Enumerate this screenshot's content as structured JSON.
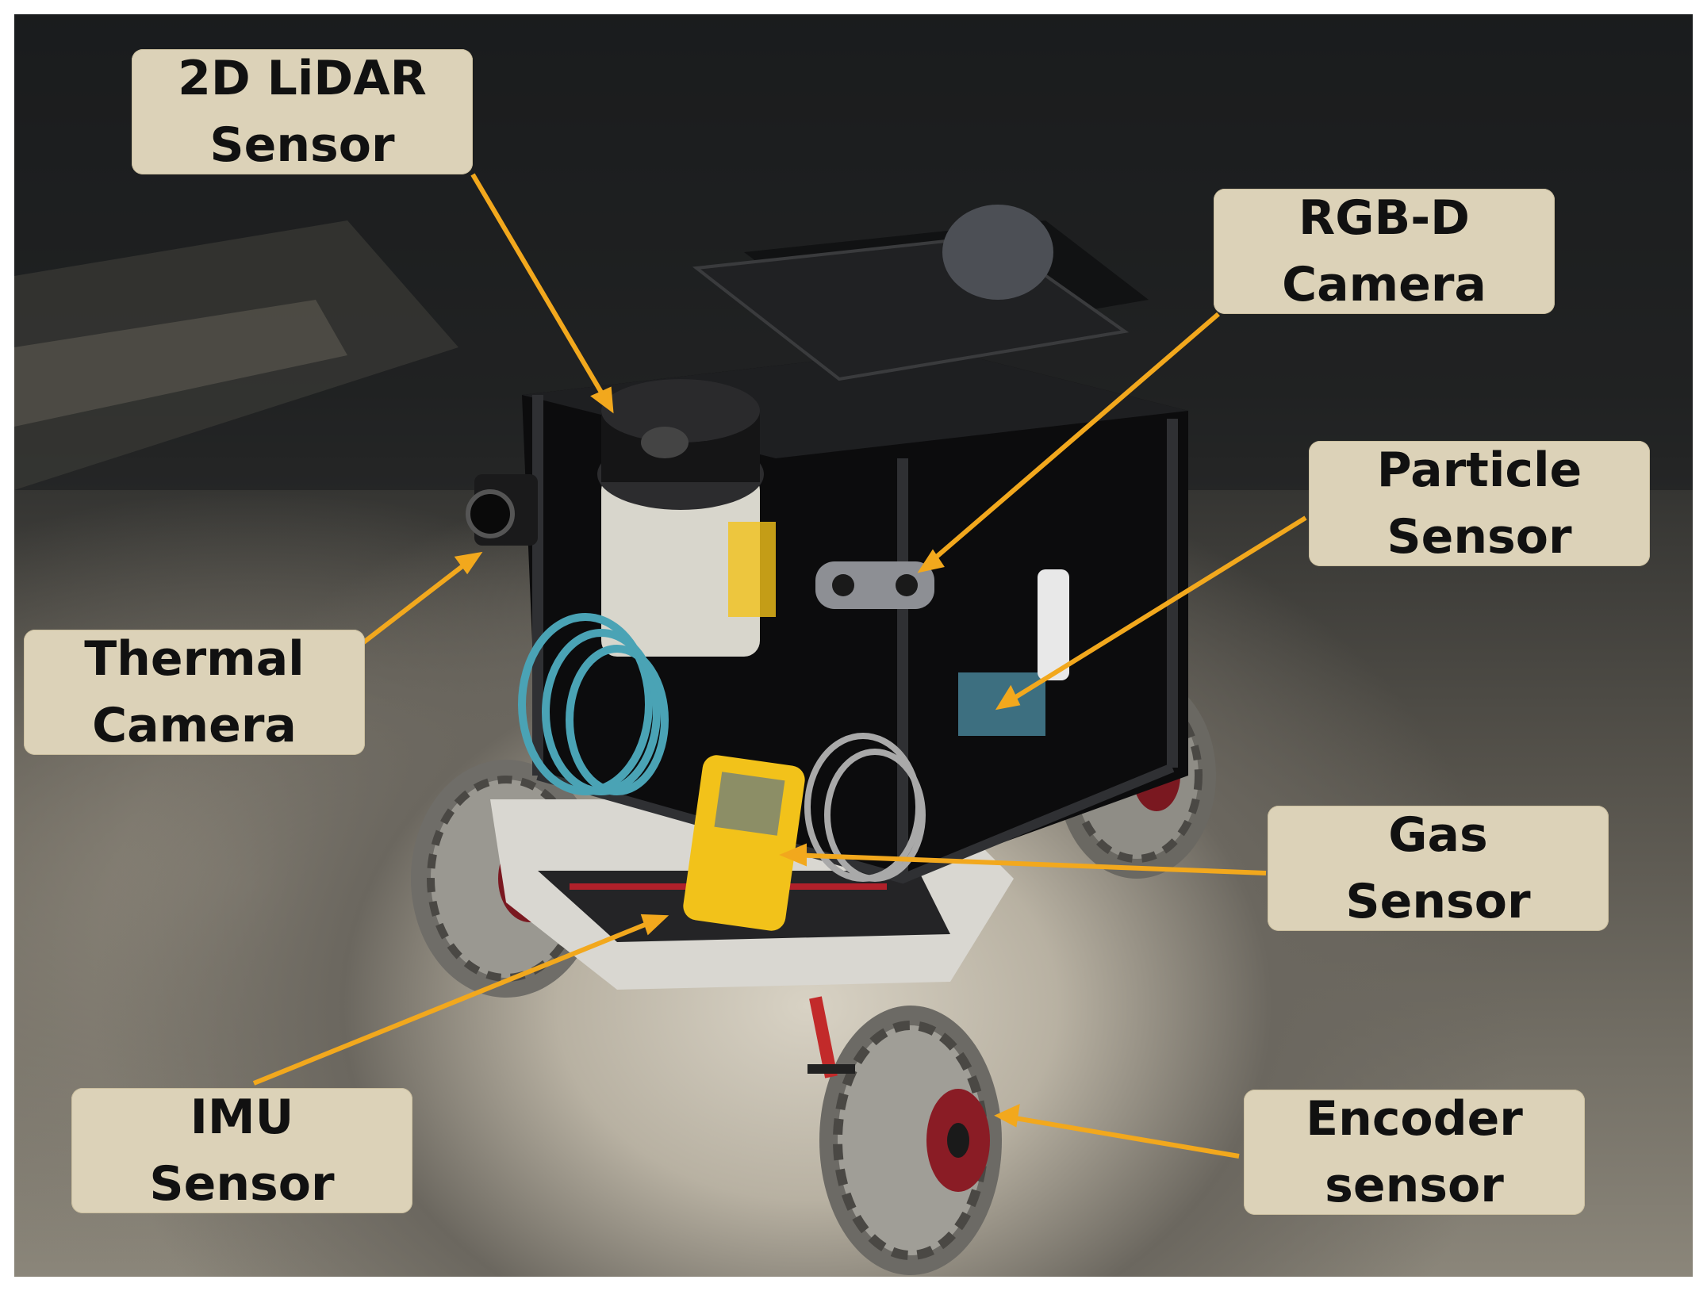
{
  "labels": {
    "lidar": {
      "line1": "2D LiDAR",
      "line2": "Sensor"
    },
    "rgbd": {
      "line1": "RGB-D",
      "line2": "Camera"
    },
    "particle": {
      "line1": "Particle",
      "line2": "Sensor"
    },
    "thermal": {
      "line1": "Thermal",
      "line2": "Camera"
    },
    "gas": {
      "line1": "Gas",
      "line2": "Sensor"
    },
    "imu": {
      "line1": "IMU",
      "line2": "Sensor"
    },
    "encoder": {
      "line1": "Encoder",
      "line2": "sensor"
    }
  },
  "colors": {
    "label_background": "#dcd2b8",
    "arrow": "#f2a81d",
    "gas_detector": "#f2c21a"
  }
}
